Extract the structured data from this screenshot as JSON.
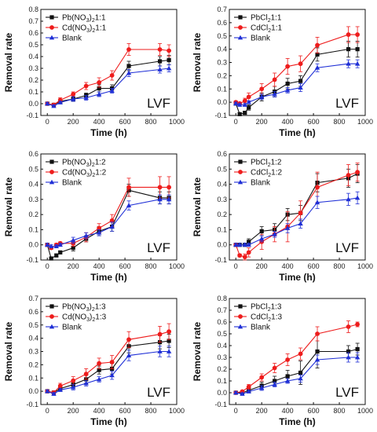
{
  "colors": {
    "pb": "#111111",
    "cd": "#ee1c1c",
    "blank": "#1f2fd6"
  },
  "chart_data": [
    {
      "type": "line",
      "xlabel": "Time (h)",
      "ylabel": "Removal rate",
      "annotation": "LVF",
      "xlim": [
        -50,
        1000
      ],
      "ylim": [
        -0.1,
        0.8
      ],
      "xticks": [
        "0",
        "200",
        "400",
        "600",
        "800",
        "1000"
      ],
      "yticks": [
        "-0.1",
        "0.0",
        "0.1",
        "0.2",
        "0.3",
        "0.4",
        "0.5",
        "0.6",
        "0.7",
        "0.8"
      ],
      "x": [
        0,
        50,
        100,
        200,
        300,
        400,
        500,
        630,
        870,
        940
      ],
      "series": [
        {
          "name": "Pb(NO3)2 1:1",
          "name_main": "Pb(NO",
          "name_sub": "3",
          "name_mid": ")",
          "name_sub2": "2",
          "name_tail": "1:1",
          "marker": "square",
          "values": [
            0.0,
            -0.01,
            0.02,
            0.04,
            0.07,
            0.13,
            0.13,
            0.32,
            0.36,
            0.37
          ],
          "errors": [
            0.01,
            0.01,
            0.02,
            0.02,
            0.02,
            0.03,
            0.03,
            0.04,
            0.04,
            0.04
          ]
        },
        {
          "name": "Cd(NO3)2 1:1",
          "name_main": "Cd(NO",
          "name_sub": "3",
          "name_mid": ")",
          "name_sub2": "2",
          "name_tail": "1:1",
          "marker": "circle",
          "values": [
            0.0,
            -0.01,
            0.03,
            0.08,
            0.15,
            0.18,
            0.24,
            0.46,
            0.46,
            0.45
          ],
          "errors": [
            0.01,
            0.01,
            0.02,
            0.02,
            0.03,
            0.04,
            0.04,
            0.05,
            0.05,
            0.05
          ]
        },
        {
          "name": "Blank",
          "name_main": "Blank",
          "name_sub": "",
          "name_mid": "",
          "name_sub2": "",
          "name_tail": "",
          "marker": "triangle",
          "values": [
            0.0,
            -0.02,
            0.01,
            0.04,
            0.05,
            0.08,
            0.11,
            0.26,
            0.29,
            0.3
          ],
          "errors": [
            0.01,
            0.01,
            0.01,
            0.02,
            0.02,
            0.02,
            0.02,
            0.03,
            0.03,
            0.03
          ]
        }
      ]
    },
    {
      "type": "line",
      "xlabel": "Time (h)",
      "ylabel": "Removal rate",
      "annotation": "LVF",
      "xlim": [
        -50,
        1000
      ],
      "ylim": [
        -0.1,
        0.7
      ],
      "xticks": [
        "0",
        "200",
        "400",
        "600",
        "800",
        "1000"
      ],
      "yticks": [
        "-0.1",
        "0.0",
        "0.1",
        "0.2",
        "0.3",
        "0.4",
        "0.5",
        "0.6",
        "0.7"
      ],
      "x": [
        0,
        30,
        70,
        100,
        200,
        300,
        400,
        500,
        630,
        870,
        940
      ],
      "series": [
        {
          "name": "PbCl2 1:1",
          "name_main": "PbCl",
          "name_sub": "2",
          "name_mid": "",
          "name_sub2": "",
          "name_tail": "1:1",
          "marker": "square",
          "values": [
            -0.01,
            -0.09,
            -0.08,
            -0.04,
            0.04,
            0.08,
            0.14,
            0.16,
            0.36,
            0.4,
            0.4
          ],
          "errors": [
            0.01,
            0.01,
            0.01,
            0.02,
            0.03,
            0.04,
            0.04,
            0.04,
            0.05,
            0.06,
            0.06
          ]
        },
        {
          "name": "CdCl2 1:1",
          "name_main": "CdCl",
          "name_sub": "2",
          "name_mid": "",
          "name_sub2": "",
          "name_tail": "1:1",
          "marker": "circle",
          "values": [
            0.0,
            -0.01,
            0.01,
            0.04,
            0.1,
            0.17,
            0.27,
            0.29,
            0.43,
            0.51,
            0.51
          ],
          "errors": [
            0.01,
            0.01,
            0.02,
            0.03,
            0.04,
            0.05,
            0.06,
            0.06,
            0.06,
            0.06,
            0.06
          ]
        },
        {
          "name": "Blank",
          "name_main": "Blank",
          "name_sub": "",
          "name_mid": "",
          "name_sub2": "",
          "name_tail": "",
          "marker": "triangle",
          "values": [
            -0.01,
            -0.02,
            -0.02,
            0.0,
            0.04,
            0.06,
            0.09,
            0.11,
            0.26,
            0.29,
            0.29
          ],
          "errors": [
            0.01,
            0.01,
            0.01,
            0.01,
            0.02,
            0.02,
            0.02,
            0.03,
            0.03,
            0.03,
            0.03
          ]
        }
      ]
    },
    {
      "type": "line",
      "xlabel": "Time (h)",
      "ylabel": "Removal rate",
      "annotation": "LVF",
      "xlim": [
        -50,
        1000
      ],
      "ylim": [
        -0.1,
        0.6
      ],
      "xticks": [
        "0",
        "200",
        "400",
        "600",
        "800",
        "1000"
      ],
      "yticks": [
        "-0.1",
        "0.0",
        "0.1",
        "0.2",
        "0.3",
        "0.4",
        "0.5",
        "0.6"
      ],
      "x": [
        0,
        30,
        70,
        100,
        200,
        300,
        400,
        500,
        630,
        870,
        940
      ],
      "series": [
        {
          "name": "Pb(NO3)2 1:2",
          "name_main": "Pb(NO",
          "name_sub": "3",
          "name_mid": ")",
          "name_sub2": "2",
          "name_tail": "1:2",
          "marker": "square",
          "values": [
            0.0,
            -0.09,
            -0.07,
            -0.05,
            -0.02,
            0.04,
            0.09,
            0.12,
            0.36,
            0.31,
            0.31
          ],
          "errors": [
            0.01,
            0.01,
            0.01,
            0.01,
            0.02,
            0.02,
            0.03,
            0.03,
            0.04,
            0.04,
            0.04
          ]
        },
        {
          "name": "Cd(NO3)2 1:2",
          "name_main": "Cd(NO",
          "name_sub": "3",
          "name_mid": ")",
          "name_sub2": "2",
          "name_tail": "1:2",
          "marker": "circle",
          "values": [
            0.0,
            -0.02,
            0.0,
            0.01,
            0.01,
            0.05,
            0.11,
            0.16,
            0.38,
            0.38,
            0.38
          ],
          "errors": [
            0.01,
            0.01,
            0.01,
            0.01,
            0.02,
            0.03,
            0.03,
            0.04,
            0.06,
            0.07,
            0.07
          ]
        },
        {
          "name": "Blank",
          "name_main": "Blank",
          "name_sub": "",
          "name_mid": "",
          "name_sub2": "",
          "name_tail": "",
          "marker": "triangle",
          "values": [
            0.0,
            -0.01,
            -0.01,
            0.0,
            0.03,
            0.06,
            0.08,
            0.12,
            0.26,
            0.3,
            0.3
          ],
          "errors": [
            0.01,
            0.01,
            0.01,
            0.01,
            0.02,
            0.02,
            0.02,
            0.03,
            0.03,
            0.03,
            0.03
          ]
        }
      ]
    },
    {
      "type": "line",
      "xlabel": "Time (h)",
      "ylabel": "Removal rate",
      "annotation": "LVF",
      "xlim": [
        -50,
        1000
      ],
      "ylim": [
        -0.1,
        0.6
      ],
      "xticks": [
        "0",
        "200",
        "400",
        "600",
        "800",
        "1000"
      ],
      "yticks": [
        "-0.1",
        "0.0",
        "0.1",
        "0.2",
        "0.3",
        "0.4",
        "0.5",
        "0.6"
      ],
      "x": [
        0,
        30,
        70,
        100,
        200,
        300,
        400,
        500,
        630,
        870,
        940
      ],
      "series": [
        {
          "name": "PbCl2 1:2",
          "name_main": "PbCl",
          "name_sub": "2",
          "name_mid": "",
          "name_sub2": "",
          "name_tail": "1:2",
          "marker": "square",
          "values": [
            0.0,
            0.0,
            0.0,
            0.02,
            0.09,
            0.1,
            0.2,
            0.21,
            0.41,
            0.44,
            0.47
          ],
          "errors": [
            0.01,
            0.01,
            0.01,
            0.02,
            0.03,
            0.04,
            0.04,
            0.05,
            0.06,
            0.06,
            0.06
          ]
        },
        {
          "name": "CdCl2 1:2",
          "name_main": "CdCl",
          "name_sub": "2",
          "name_mid": "",
          "name_sub2": "",
          "name_tail": "1:2",
          "marker": "circle",
          "values": [
            0.0,
            -0.07,
            -0.08,
            -0.05,
            0.02,
            0.07,
            0.12,
            0.21,
            0.38,
            0.46,
            0.48
          ],
          "errors": [
            0.01,
            0.01,
            0.02,
            0.03,
            0.05,
            0.05,
            0.1,
            0.08,
            0.1,
            0.07,
            0.06
          ]
        },
        {
          "name": "Blank",
          "name_main": "Blank",
          "name_sub": "",
          "name_mid": "",
          "name_sub2": "",
          "name_tail": "",
          "marker": "triangle",
          "values": [
            0.0,
            0.0,
            0.0,
            0.0,
            0.04,
            0.07,
            0.11,
            0.14,
            0.28,
            0.3,
            0.31
          ],
          "errors": [
            0.01,
            0.01,
            0.01,
            0.01,
            0.02,
            0.02,
            0.03,
            0.03,
            0.04,
            0.04,
            0.04
          ]
        }
      ]
    },
    {
      "type": "line",
      "xlabel": "Time (h)",
      "ylabel": "Removal rate",
      "annotation": "LVF",
      "xlim": [
        -50,
        1000
      ],
      "ylim": [
        -0.1,
        0.7
      ],
      "xticks": [
        "0",
        "200",
        "400",
        "600",
        "800",
        "1000"
      ],
      "yticks": [
        "-0.1",
        "0.0",
        "0.1",
        "0.2",
        "0.3",
        "0.4",
        "0.5",
        "0.6",
        "0.7"
      ],
      "x": [
        0,
        50,
        100,
        200,
        300,
        400,
        500,
        630,
        870,
        940
      ],
      "series": [
        {
          "name": "Pb(NO3)2 1:3",
          "name_main": "Pb(NO",
          "name_sub": "3",
          "name_mid": ")",
          "name_sub2": "2",
          "name_tail": "1:3",
          "marker": "square",
          "values": [
            0.0,
            -0.01,
            0.02,
            0.05,
            0.09,
            0.16,
            0.17,
            0.34,
            0.37,
            0.38
          ],
          "errors": [
            0.01,
            0.01,
            0.02,
            0.02,
            0.03,
            0.03,
            0.04,
            0.05,
            0.05,
            0.05
          ]
        },
        {
          "name": "Cd(NO3)2 1:3",
          "name_main": "Cd(NO",
          "name_sub": "3",
          "name_mid": ")",
          "name_sub2": "2",
          "name_tail": "1:3",
          "marker": "circle",
          "values": [
            0.0,
            -0.01,
            0.04,
            0.08,
            0.13,
            0.21,
            0.22,
            0.39,
            0.43,
            0.45
          ],
          "errors": [
            0.01,
            0.01,
            0.02,
            0.03,
            0.04,
            0.04,
            0.05,
            0.06,
            0.06,
            0.06
          ]
        },
        {
          "name": "Blank",
          "name_main": "Blank",
          "name_sub": "",
          "name_mid": "",
          "name_sub2": "",
          "name_tail": "",
          "marker": "triangle",
          "values": [
            0.0,
            -0.02,
            0.01,
            0.03,
            0.06,
            0.09,
            0.12,
            0.27,
            0.3,
            0.3
          ],
          "errors": [
            0.01,
            0.01,
            0.01,
            0.02,
            0.02,
            0.02,
            0.03,
            0.04,
            0.04,
            0.04
          ]
        }
      ]
    },
    {
      "type": "line",
      "xlabel": "Time (h)",
      "ylabel": "Removal rate",
      "annotation": "LVF",
      "xlim": [
        -50,
        1000
      ],
      "ylim": [
        -0.1,
        0.8
      ],
      "xticks": [
        "0",
        "200",
        "400",
        "600",
        "800",
        "1000"
      ],
      "yticks": [
        "-0.1",
        "0.0",
        "0.1",
        "0.2",
        "0.3",
        "0.4",
        "0.5",
        "0.6",
        "0.7",
        "0.8"
      ],
      "x": [
        0,
        50,
        100,
        200,
        300,
        400,
        500,
        630,
        870,
        940
      ],
      "series": [
        {
          "name": "PbCl2 1:3",
          "name_main": "PbCl",
          "name_sub": "2",
          "name_mid": "",
          "name_sub2": "",
          "name_tail": "1:3",
          "marker": "square",
          "values": [
            0.0,
            0.0,
            0.02,
            0.06,
            0.1,
            0.14,
            0.17,
            0.35,
            0.35,
            0.37
          ],
          "errors": [
            0.01,
            0.01,
            0.02,
            0.03,
            0.04,
            0.05,
            0.1,
            0.14,
            0.05,
            0.05
          ]
        },
        {
          "name": "CdCl2 1:3",
          "name_main": "CdCl",
          "name_sub": "2",
          "name_mid": "",
          "name_sub2": "",
          "name_tail": "1:3",
          "marker": "circle",
          "values": [
            0.0,
            0.01,
            0.05,
            0.13,
            0.21,
            0.28,
            0.33,
            0.5,
            0.56,
            0.58
          ],
          "errors": [
            0.01,
            0.01,
            0.02,
            0.03,
            0.04,
            0.05,
            0.05,
            0.06,
            0.05,
            0.02
          ]
        },
        {
          "name": "Blank",
          "name_main": "Blank",
          "name_sub": "",
          "name_mid": "",
          "name_sub2": "",
          "name_tail": "",
          "marker": "triangle",
          "values": [
            0.0,
            -0.01,
            0.01,
            0.04,
            0.07,
            0.1,
            0.12,
            0.28,
            0.3,
            0.3
          ],
          "errors": [
            0.01,
            0.01,
            0.01,
            0.02,
            0.02,
            0.02,
            0.03,
            0.04,
            0.04,
            0.04
          ]
        }
      ]
    }
  ]
}
